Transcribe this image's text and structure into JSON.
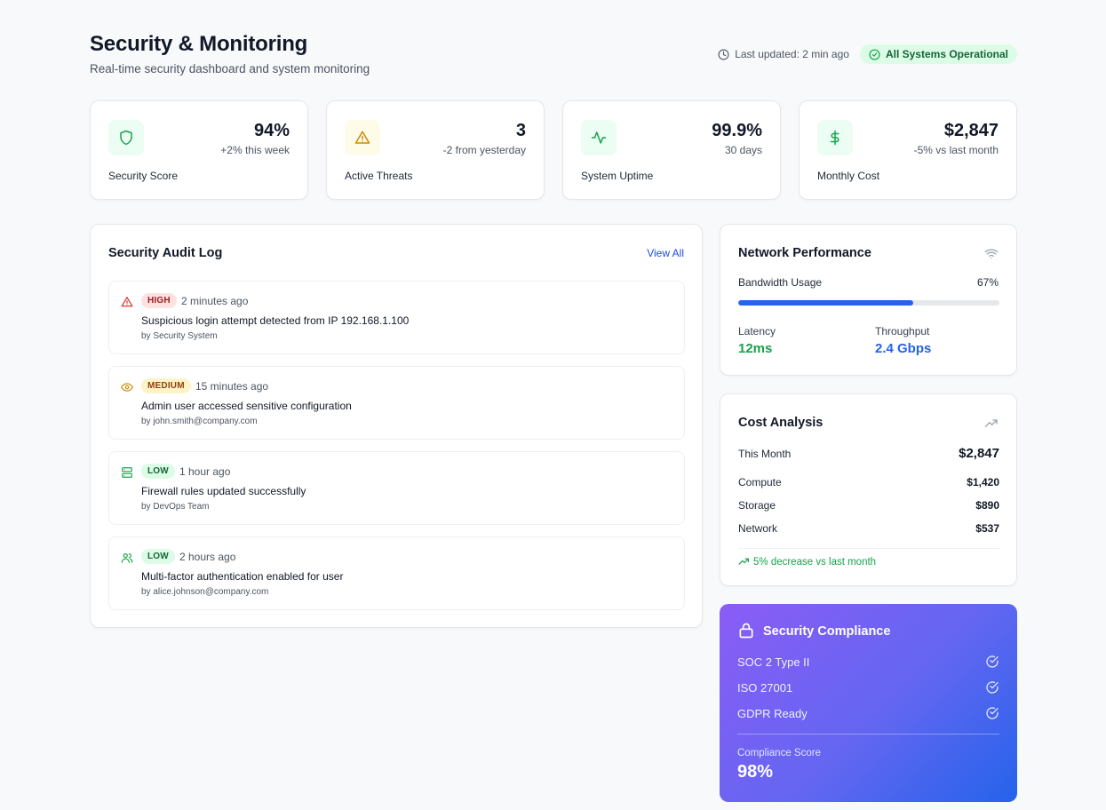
{
  "header": {
    "title": "Security & Monitoring",
    "subtitle": "Real-time security dashboard and system monitoring",
    "last_updated": "Last updated: 2 min ago",
    "status": "All Systems Operational"
  },
  "stats": [
    {
      "label": "Security Score",
      "value": "94%",
      "delta": "+2% this week",
      "icon": "shield-icon",
      "color": "#16a34a",
      "bg": "#dcfce7"
    },
    {
      "label": "Active Threats",
      "value": "3",
      "delta": "-2 from yesterday",
      "icon": "warning-icon",
      "color": "#ca8a04",
      "bg": "#fef9c3"
    },
    {
      "label": "System Uptime",
      "value": "99.9%",
      "delta": "30 days",
      "icon": "activity-icon",
      "color": "#16a34a",
      "bg": "#dcfce7"
    },
    {
      "label": "Monthly Cost",
      "value": "$2,847",
      "delta": "-5% vs last month",
      "icon": "dollar-icon",
      "color": "#16a34a",
      "bg": "#dcfce7"
    }
  ],
  "audit": {
    "title": "Security Audit Log",
    "view_all": "View All",
    "entries": [
      {
        "severity": "HIGH",
        "time": "2 minutes ago",
        "message": "Suspicious login attempt detected from IP 192.168.1.100",
        "by": "by Security System",
        "icon": "alert-triangle-icon"
      },
      {
        "severity": "MEDIUM",
        "time": "15 minutes ago",
        "message": "Admin user accessed sensitive configuration",
        "by": "by john.smith@company.com",
        "icon": "eye-icon"
      },
      {
        "severity": "LOW",
        "time": "1 hour ago",
        "message": "Firewall rules updated successfully",
        "by": "by DevOps Team",
        "icon": "server-icon"
      },
      {
        "severity": "LOW",
        "time": "2 hours ago",
        "message": "Multi-factor authentication enabled for user",
        "by": "by alice.johnson@company.com",
        "icon": "users-icon"
      }
    ]
  },
  "network": {
    "title": "Network Performance",
    "bandwidth_label": "Bandwidth Usage",
    "bandwidth_value": "67%",
    "bandwidth_fraction": 0.67,
    "latency_label": "Latency",
    "latency_value": "12ms",
    "throughput_label": "Throughput",
    "throughput_value": "2.4 Gbps"
  },
  "cost": {
    "title": "Cost Analysis",
    "this_month_label": "This Month",
    "this_month_value": "$2,847",
    "items": [
      {
        "label": "Compute",
        "value": "$1,420"
      },
      {
        "label": "Storage",
        "value": "$890"
      },
      {
        "label": "Network",
        "value": "$537"
      }
    ],
    "note": "5% decrease vs last month"
  },
  "compliance": {
    "title": "Security Compliance",
    "items": [
      {
        "label": "SOC 2 Type II"
      },
      {
        "label": "ISO 27001"
      },
      {
        "label": "GDPR Ready"
      }
    ],
    "score_label": "Compliance Score",
    "score_value": "98%"
  }
}
